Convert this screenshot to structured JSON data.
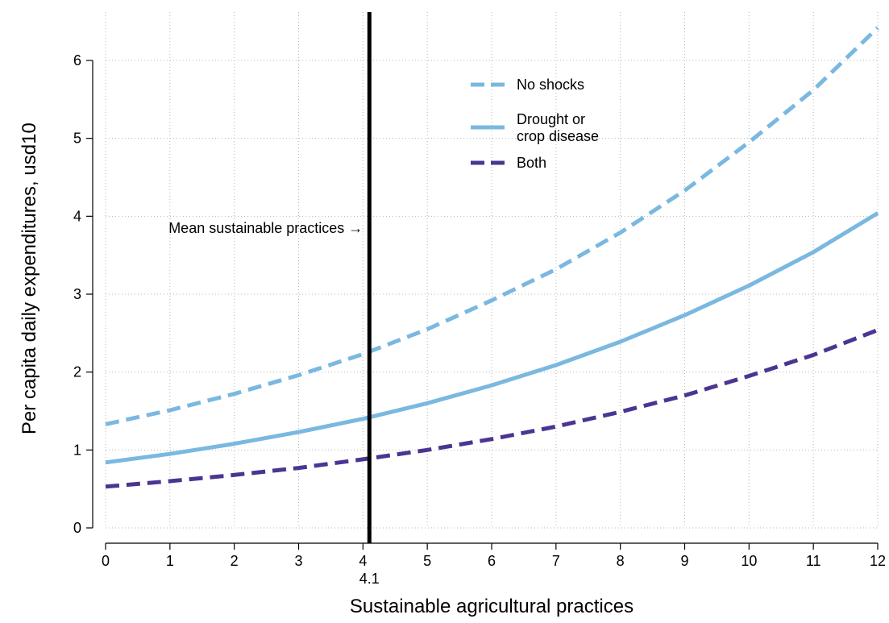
{
  "chart_data": {
    "type": "line",
    "title": "",
    "xlabel": "Sustainable agricultural practices",
    "ylabel": "Per capita daily expenditures, usd10",
    "xlim": [
      0,
      12
    ],
    "ylim": [
      0,
      6.5
    ],
    "x_ticks": [
      0,
      1,
      2,
      3,
      4,
      5,
      6,
      7,
      8,
      9,
      10,
      11,
      12
    ],
    "y_ticks": [
      0,
      1,
      2,
      3,
      4,
      5,
      6
    ],
    "grid": true,
    "legend_position": "top-center",
    "x": [
      0,
      1,
      2,
      3,
      4,
      5,
      6,
      7,
      8,
      9,
      10,
      11,
      12
    ],
    "series": [
      {
        "name": "No shocks",
        "line_style": "dashed",
        "color": "#7ab8e0",
        "values": [
          1.33,
          1.51,
          1.72,
          1.96,
          2.23,
          2.55,
          2.92,
          3.32,
          3.79,
          4.33,
          4.95,
          5.62,
          6.42
        ]
      },
      {
        "name": "Drought or crop disease",
        "legend_lines": [
          "Drought or",
          "crop disease"
        ],
        "line_style": "solid",
        "color": "#7ab8e0",
        "values": [
          0.84,
          0.95,
          1.08,
          1.23,
          1.4,
          1.6,
          1.83,
          2.09,
          2.39,
          2.73,
          3.11,
          3.54,
          4.04
        ]
      },
      {
        "name": "Both",
        "line_style": "dashed",
        "color": "#4b3592",
        "values": [
          0.53,
          0.6,
          0.68,
          0.77,
          0.88,
          1.0,
          1.14,
          1.3,
          1.49,
          1.7,
          1.95,
          2.22,
          2.54
        ]
      }
    ],
    "reference_line": {
      "x": 4.1,
      "tick_label": "4.1",
      "annotation": "Mean sustainable practices →",
      "annotation_y": 3.85,
      "color": "#000000"
    }
  }
}
